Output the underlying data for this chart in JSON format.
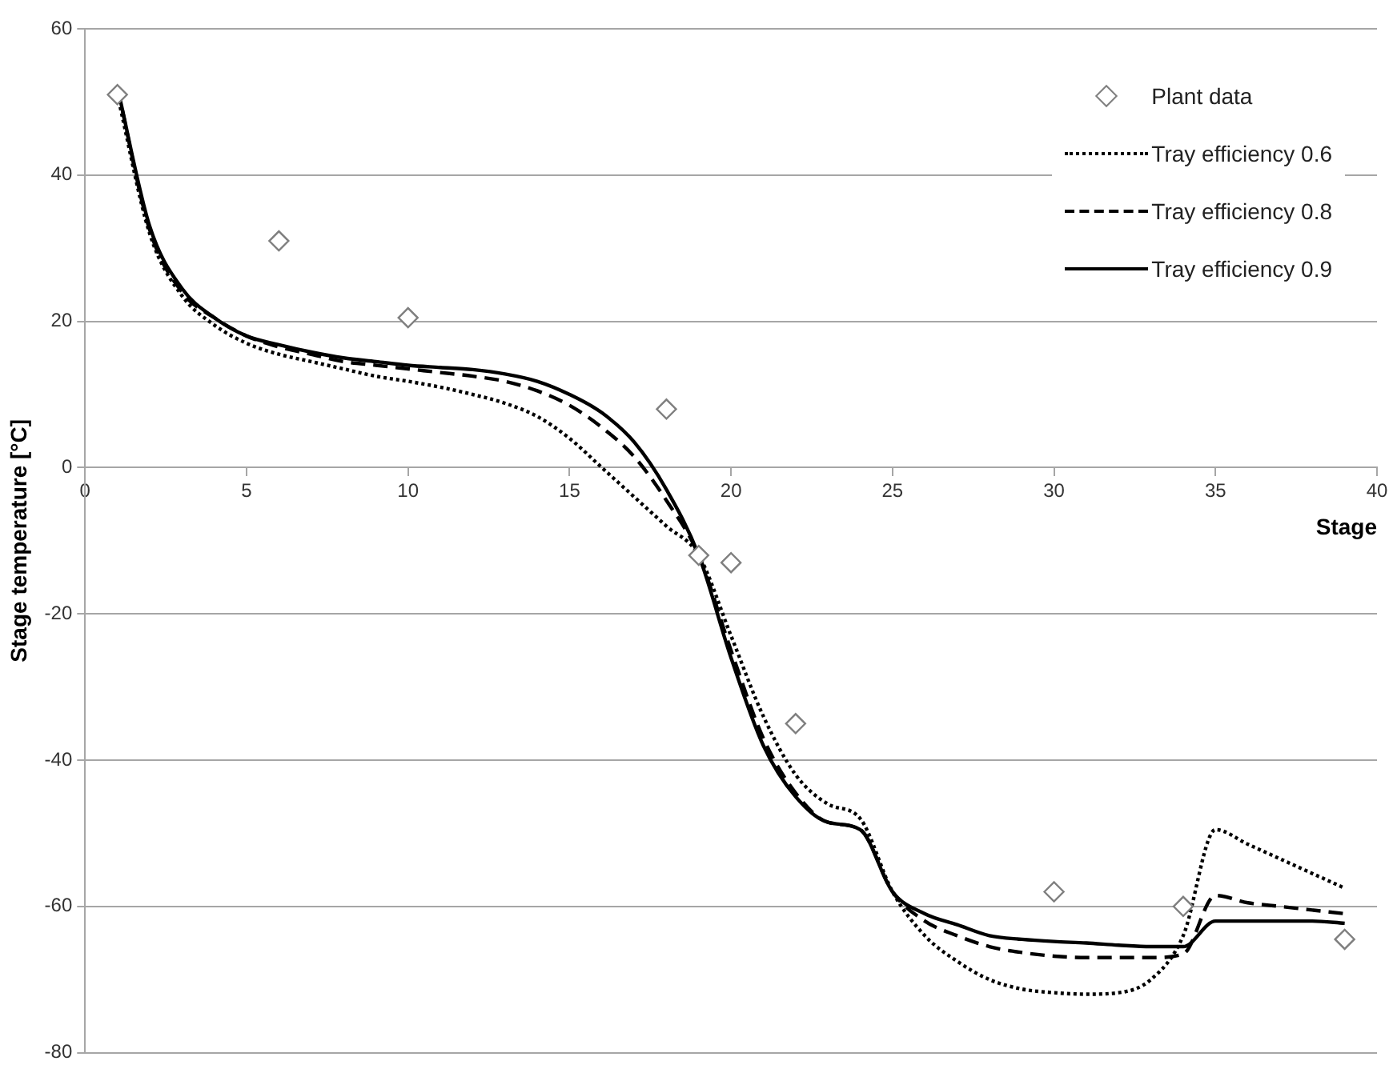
{
  "chart_data": {
    "type": "line",
    "xlabel": "Stage",
    "ylabel": "Stage temperature [°C]",
    "x": [
      1,
      2,
      3,
      4,
      5,
      6,
      7,
      8,
      9,
      10,
      11,
      12,
      13,
      14,
      15,
      16,
      17,
      18,
      19,
      20,
      21,
      22,
      23,
      24,
      25,
      26,
      27,
      28,
      29,
      30,
      31,
      32,
      33,
      34,
      35,
      36,
      37,
      38,
      39
    ],
    "xlim": [
      0,
      40
    ],
    "xticks": [
      0,
      5,
      10,
      15,
      20,
      25,
      30,
      35,
      40
    ],
    "ylim": [
      -80,
      60
    ],
    "yticks": [
      -80,
      -60,
      -40,
      -20,
      0,
      20,
      40,
      60
    ],
    "grid": "y",
    "legend": "top right",
    "marker": "none",
    "series": [
      {
        "name": "Plant data",
        "type": "scatter",
        "marker": "diamond",
        "color": "#7f7f7f",
        "x": [
          1,
          6,
          10,
          18,
          19,
          20,
          22,
          30,
          34,
          39
        ],
        "values": [
          51,
          31,
          20.5,
          8,
          -12,
          -13,
          -35,
          -58,
          -60,
          -64.5
        ]
      },
      {
        "name": "Tray efficiency 0.6",
        "color": "#000000",
        "line_style": "dotted",
        "values": [
          51,
          32,
          23.5,
          19.5,
          17,
          15.5,
          14.5,
          13.5,
          12.5,
          11.8,
          11,
          10,
          8.8,
          7,
          4,
          0,
          -4,
          -8,
          -12,
          -23,
          -34,
          -42,
          -46,
          -48,
          -58,
          -64,
          -67.5,
          -70,
          -71.3,
          -71.8,
          -72,
          -71.8,
          -70,
          -64,
          -49.5,
          -51.5,
          -53.5,
          -55.5,
          -57.5
        ]
      },
      {
        "name": "Tray efficiency 0.8",
        "color": "#000000",
        "line_style": "dashed",
        "values": [
          52,
          32.5,
          24,
          20.5,
          18,
          16.5,
          15.5,
          14.5,
          14,
          13.5,
          13,
          12.5,
          11.8,
          10.5,
          8.5,
          5.5,
          1.5,
          -4.5,
          -12,
          -25,
          -37,
          -44.5,
          -48.5,
          -49.5,
          -58,
          -62,
          -64,
          -65.5,
          -66.3,
          -66.8,
          -67,
          -67,
          -67,
          -66.5,
          -58.5,
          -59.5,
          -60,
          -60.5,
          -61
        ]
      },
      {
        "name": "Tray efficiency 0.9",
        "color": "#000000",
        "line_style": "solid",
        "values": [
          52,
          33,
          24.5,
          20.5,
          18,
          16.8,
          15.8,
          15,
          14.5,
          14,
          13.7,
          13.4,
          12.8,
          11.8,
          10,
          7.5,
          3.5,
          -3,
          -12,
          -26,
          -38,
          -45,
          -48.5,
          -49.5,
          -58,
          -61,
          -62.5,
          -64,
          -64.5,
          -64.8,
          -65,
          -65.3,
          -65.5,
          -65.5,
          -62,
          -62,
          -62,
          -62,
          -62.3
        ]
      }
    ]
  }
}
